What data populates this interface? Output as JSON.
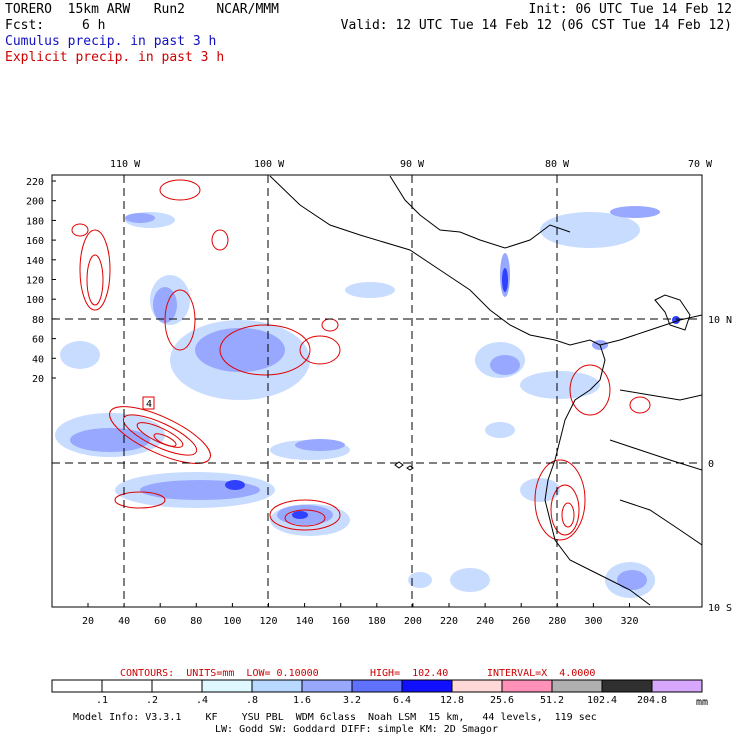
{
  "header": {
    "model": "TORERO  15km ARW   Run2    NCAR/MMM",
    "init": "Init: 06 UTC Tue 14 Feb 12",
    "fcst_label": "Fcst:",
    "fcst_value": "6 h",
    "valid": "Valid: 12 UTC Tue 14 Feb 12 (06 CST Tue 14 Feb 12)",
    "legend_cumulus": "Cumulus precip. in past 3 h",
    "legend_explicit": "Explicit precip. in past 3 h"
  },
  "map": {
    "lon_labels": [
      "110 W",
      "100 W",
      "90 W",
      "80 W",
      "70 W"
    ],
    "lat_labels": [
      "10 N",
      "0",
      "10 S"
    ],
    "y_ticks": [
      "220",
      "200",
      "180",
      "160",
      "140",
      "120",
      "100",
      "80",
      "60",
      "40",
      "20"
    ],
    "x_ticks": [
      "20",
      "40",
      "60",
      "80",
      "100",
      "120",
      "140",
      "160",
      "180",
      "200",
      "220",
      "240",
      "260",
      "280",
      "300",
      "320"
    ],
    "contour_label": "4"
  },
  "contour_info": {
    "units": "CONTOURS:  UNITS=mm  LOW= 0.10000",
    "high": "HIGH=  102.40",
    "interval": "INTERVAL=X  4.0000"
  },
  "colorbar": {
    "unit": "mm",
    "labels": [
      ".1",
      ".2",
      ".4",
      ".8",
      "1.6",
      "3.2",
      "6.4",
      "12.8",
      "25.6",
      "51.2",
      "102.4",
      "204.8"
    ],
    "colors": [
      "#ffffff",
      "#ffffff",
      "#ffffff",
      "#e0f8ff",
      "#b8d8ff",
      "#98a8ff",
      "#6070ff",
      "#1010ff",
      "#ffd8d8",
      "#ff90b8",
      "#b0b0b0",
      "#303030",
      "#d8a8ff"
    ]
  },
  "footer": {
    "line1": "Model Info: V3.3.1    KF    YSU PBL  WDM 6class  Noah LSM  15 km,   44 levels,  119 sec",
    "line2": "LW: Godd SW: Goddard DIFF: simple KM: 2D Smagor"
  }
}
